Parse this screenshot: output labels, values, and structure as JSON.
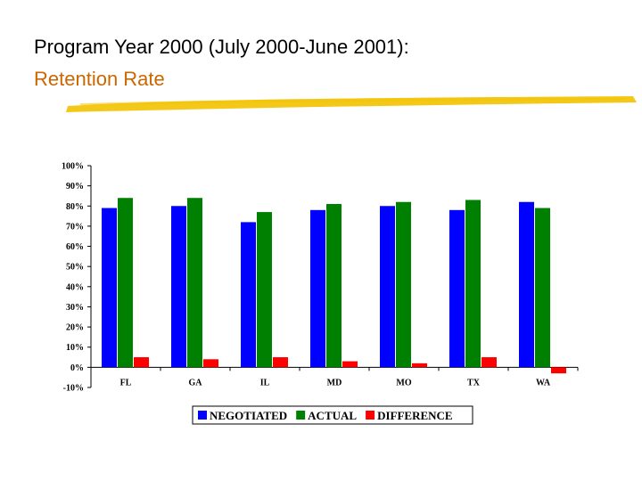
{
  "slide": {
    "title_line1": "Program Year 2000 (July 2000-June 2001):",
    "title_line2": "Retention Rate",
    "title_line2_color": "#cc6600",
    "brush_color": "#f2c200"
  },
  "chart_data": {
    "type": "bar",
    "categories": [
      "FL",
      "GA",
      "IL",
      "MD",
      "MO",
      "TX",
      "WA"
    ],
    "series": [
      {
        "name": "NEGOTIATED",
        "color": "#0000ff",
        "values": [
          79,
          80,
          72,
          78,
          80,
          78,
          82
        ]
      },
      {
        "name": "ACTUAL",
        "color": "#008000",
        "values": [
          84,
          84,
          77,
          81,
          82,
          83,
          79
        ]
      },
      {
        "name": "DIFFERENCE",
        "color": "#ff0000",
        "values": [
          5,
          4,
          5,
          3,
          2,
          5,
          -3
        ]
      }
    ],
    "ylim": [
      -10,
      100
    ],
    "yticks": [
      "-10%",
      "0%",
      "10%",
      "20%",
      "30%",
      "40%",
      "50%",
      "60%",
      "70%",
      "80%",
      "90%",
      "100%"
    ],
    "ytick_values": [
      -10,
      0,
      10,
      20,
      30,
      40,
      50,
      60,
      70,
      80,
      90,
      100
    ],
    "legend_position": "bottom",
    "grid": false
  }
}
